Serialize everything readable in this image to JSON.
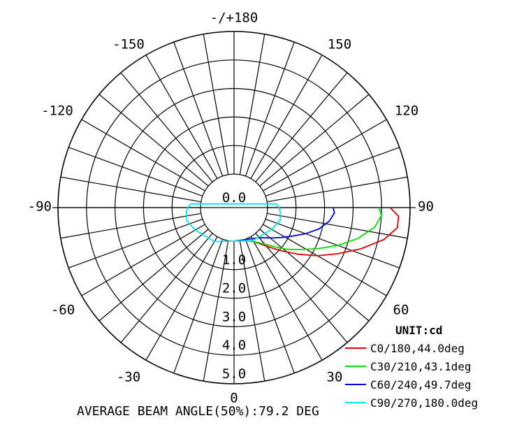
{
  "chart_data": {
    "type": "polar",
    "unit_label": "UNIT:cd",
    "footer": "AVERAGE BEAM ANGLE(50%):79.2 DEG",
    "angle_labels": [
      {
        "deg": 180,
        "text": "-/+180"
      },
      {
        "deg": 150,
        "text": "150"
      },
      {
        "deg": -150,
        "text": "-150"
      },
      {
        "deg": 120,
        "text": "120"
      },
      {
        "deg": -120,
        "text": "-120"
      },
      {
        "deg": 90,
        "text": "90"
      },
      {
        "deg": -90,
        "text": "-90"
      },
      {
        "deg": 60,
        "text": "60"
      },
      {
        "deg": -60,
        "text": "-60"
      },
      {
        "deg": 30,
        "text": "30"
      },
      {
        "deg": -30,
        "text": "-30"
      },
      {
        "deg": 0,
        "text": "0"
      }
    ],
    "radial_labels": [
      "0.0",
      "1.0",
      "2.0",
      "3.0",
      "4.0",
      "5.0"
    ],
    "radial_range": [
      0,
      5.0
    ],
    "grid": true,
    "spoke_step_deg": 10,
    "series": [
      {
        "name": "C0/180,44.0deg",
        "color": "#e00000",
        "points": [
          [
            90,
            4.3
          ],
          [
            87,
            4.6
          ],
          [
            83,
            4.6
          ],
          [
            78,
            4.2
          ],
          [
            72,
            3.5
          ],
          [
            66,
            2.8
          ],
          [
            60,
            2.2
          ],
          [
            54,
            1.6
          ],
          [
            48,
            1.1
          ],
          [
            42,
            0.7
          ],
          [
            36,
            0.4
          ],
          [
            30,
            0.2
          ],
          [
            20,
            0.05
          ],
          [
            0,
            0
          ]
        ]
      },
      {
        "name": "C30/210,43.1deg",
        "color": "#00e000",
        "points": [
          [
            90,
            3.9
          ],
          [
            87,
            4.0
          ],
          [
            82,
            3.8
          ],
          [
            76,
            3.3
          ],
          [
            70,
            2.7
          ],
          [
            64,
            2.1
          ],
          [
            58,
            1.6
          ],
          [
            52,
            1.2
          ],
          [
            46,
            0.8
          ],
          [
            40,
            0.5
          ],
          [
            34,
            0.3
          ],
          [
            25,
            0.1
          ],
          [
            0,
            0
          ]
        ]
      },
      {
        "name": "C60/240,49.7deg",
        "color": "#0000e0",
        "points": [
          [
            90,
            2.3
          ],
          [
            87,
            2.35
          ],
          [
            82,
            2.2
          ],
          [
            76,
            1.9
          ],
          [
            70,
            1.5
          ],
          [
            64,
            1.1
          ],
          [
            58,
            0.8
          ],
          [
            52,
            0.55
          ],
          [
            46,
            0.35
          ],
          [
            40,
            0.2
          ],
          [
            30,
            0.08
          ],
          [
            0,
            0
          ]
        ]
      },
      {
        "name": "C90/270,180.0deg",
        "color": "#00e8e8",
        "points": [
          [
            0,
            0
          ],
          [
            30,
            0.15
          ],
          [
            60,
            0.35
          ],
          [
            75,
            0.5
          ],
          [
            85,
            0.45
          ],
          [
            90,
            0.4
          ],
          [
            95,
            0.3
          ],
          [
            -95,
            0.35
          ],
          [
            -90,
            0.45
          ],
          [
            -85,
            0.5
          ],
          [
            -75,
            0.55
          ],
          [
            -60,
            0.4
          ],
          [
            -30,
            0.2
          ],
          [
            0,
            0
          ]
        ]
      }
    ]
  }
}
